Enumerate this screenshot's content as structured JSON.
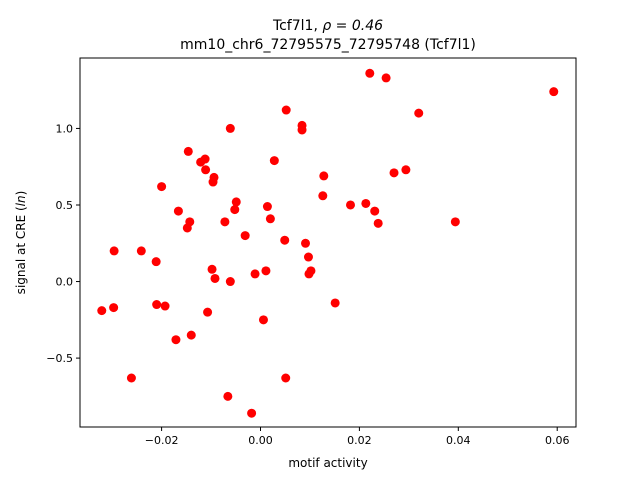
{
  "chart_data": {
    "type": "scatter",
    "title_line1": "Tcf7l1, ",
    "title_rho": "ρ = 0.46",
    "title_line2": "mm10_chr6_72795575_72795748 (Tcf7l1)",
    "xlabel": "motif activity",
    "ylabel_prefix": "signal at CRE (",
    "ylabel_italic": "ln",
    "ylabel_suffix": ")",
    "xlim": [
      -0.0365,
      0.0638
    ],
    "ylim": [
      -0.95,
      1.46
    ],
    "xticks": [
      -0.02,
      0.0,
      0.02,
      0.04,
      0.06
    ],
    "xtick_labels": [
      "−0.02",
      "0.00",
      "0.02",
      "0.04",
      "0.06"
    ],
    "yticks": [
      -0.5,
      0.0,
      0.5,
      1.0
    ],
    "ytick_labels": [
      "−0.5",
      "0.0",
      "0.5",
      "1.0"
    ],
    "grid": false,
    "marker_color": "#ff0000",
    "points": [
      [
        0.0593,
        1.24
      ],
      [
        0.0221,
        1.36
      ],
      [
        0.0254,
        1.33
      ],
      [
        0.032,
        1.1
      ],
      [
        0.0052,
        1.12
      ],
      [
        0.0084,
        1.02
      ],
      [
        0.0084,
        0.99
      ],
      [
        -0.0061,
        1.0
      ],
      [
        -0.0146,
        0.85
      ],
      [
        -0.0112,
        0.8
      ],
      [
        -0.0121,
        0.78
      ],
      [
        0.0028,
        0.79
      ],
      [
        -0.0111,
        0.73
      ],
      [
        -0.0094,
        0.68
      ],
      [
        -0.0096,
        0.65
      ],
      [
        0.0294,
        0.73
      ],
      [
        0.027,
        0.71
      ],
      [
        0.0128,
        0.69
      ],
      [
        -0.02,
        0.62
      ],
      [
        0.0126,
        0.56
      ],
      [
        -0.0049,
        0.52
      ],
      [
        -0.0052,
        0.47
      ],
      [
        0.0014,
        0.49
      ],
      [
        0.0182,
        0.5
      ],
      [
        0.0213,
        0.51
      ],
      [
        0.0231,
        0.46
      ],
      [
        -0.0166,
        0.46
      ],
      [
        0.002,
        0.41
      ],
      [
        -0.0143,
        0.39
      ],
      [
        -0.0072,
        0.39
      ],
      [
        0.0394,
        0.39
      ],
      [
        0.0238,
        0.38
      ],
      [
        -0.0148,
        0.35
      ],
      [
        -0.0031,
        0.3
      ],
      [
        0.0049,
        0.27
      ],
      [
        0.0091,
        0.25
      ],
      [
        0.0097,
        0.16
      ],
      [
        -0.0296,
        0.2
      ],
      [
        -0.0241,
        0.2
      ],
      [
        -0.0211,
        0.13
      ],
      [
        -0.0098,
        0.08
      ],
      [
        0.0102,
        0.07
      ],
      [
        0.0011,
        0.07
      ],
      [
        0.0098,
        0.05
      ],
      [
        -0.0011,
        0.05
      ],
      [
        -0.0092,
        0.02
      ],
      [
        -0.0061,
        0.0
      ],
      [
        -0.0297,
        -0.17
      ],
      [
        -0.0321,
        -0.19
      ],
      [
        -0.021,
        -0.15
      ],
      [
        -0.0193,
        -0.16
      ],
      [
        -0.0107,
        -0.2
      ],
      [
        0.0151,
        -0.14
      ],
      [
        0.0006,
        -0.25
      ],
      [
        -0.014,
        -0.35
      ],
      [
        -0.0171,
        -0.38
      ],
      [
        -0.0261,
        -0.63
      ],
      [
        0.0051,
        -0.63
      ],
      [
        -0.0066,
        -0.75
      ],
      [
        -0.0018,
        -0.86
      ]
    ]
  }
}
